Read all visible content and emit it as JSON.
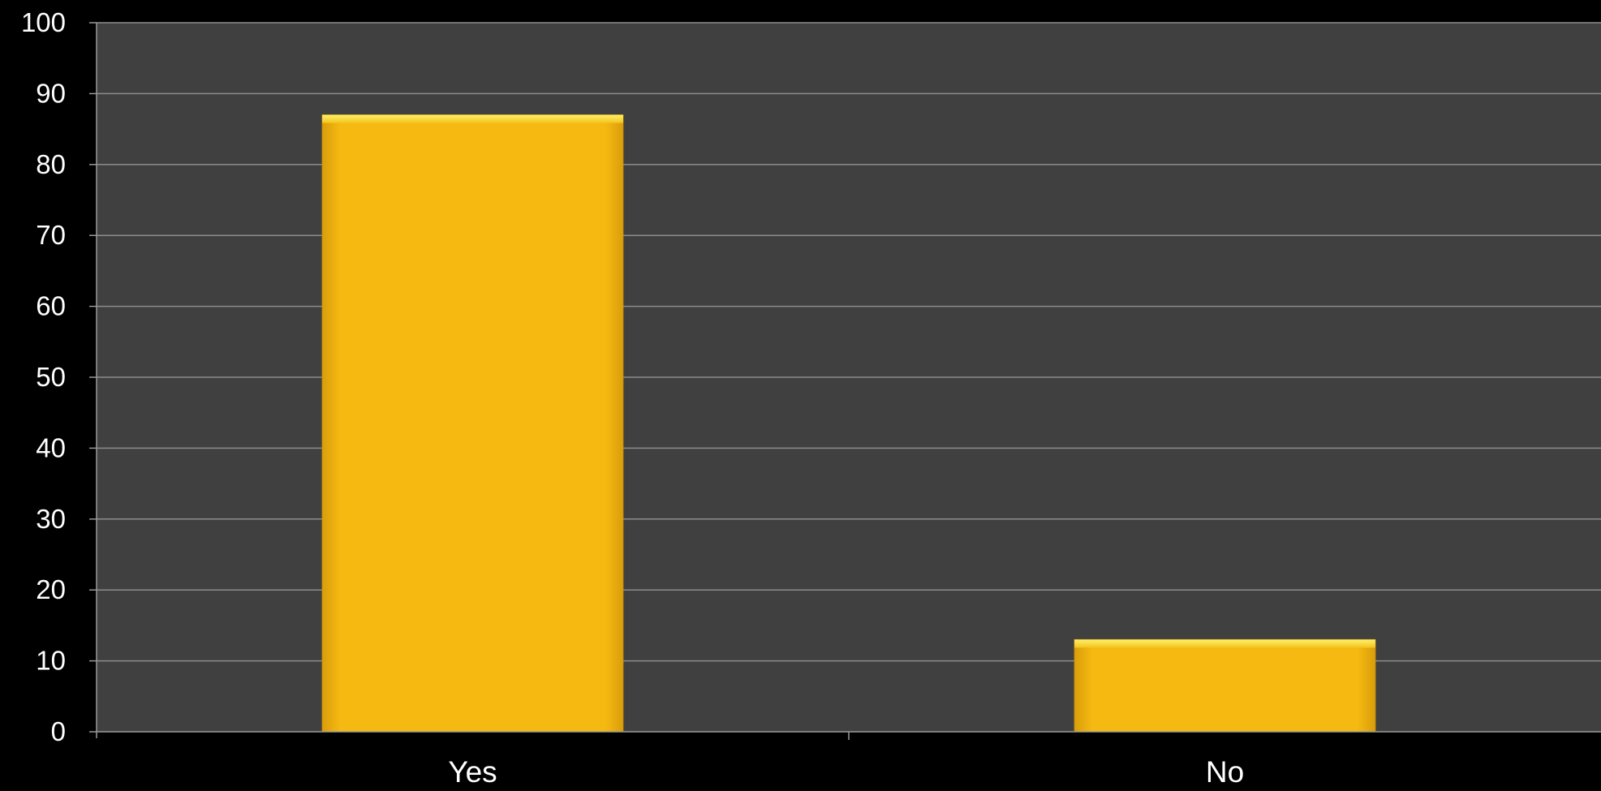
{
  "chart_data": {
    "type": "bar",
    "title": "",
    "xlabel": "",
    "ylabel": "",
    "categories": [
      "Yes",
      "No"
    ],
    "values": [
      87,
      13
    ],
    "ylim": [
      0,
      100
    ],
    "yticks": [
      "0",
      "10",
      "20",
      "30",
      "40",
      "50",
      "60",
      "70",
      "80",
      "90",
      "100"
    ],
    "grid": true,
    "legend": "none",
    "colors": {
      "bar": "#F6B912",
      "bar_highlight": "#FFE545",
      "bar_edge": "#C9920A",
      "plot_background": "#404040",
      "page_background": "#000000",
      "gridline": "#8C8C8C",
      "axis_line": "#9A9A9A",
      "text": "#FFFFFF"
    }
  }
}
